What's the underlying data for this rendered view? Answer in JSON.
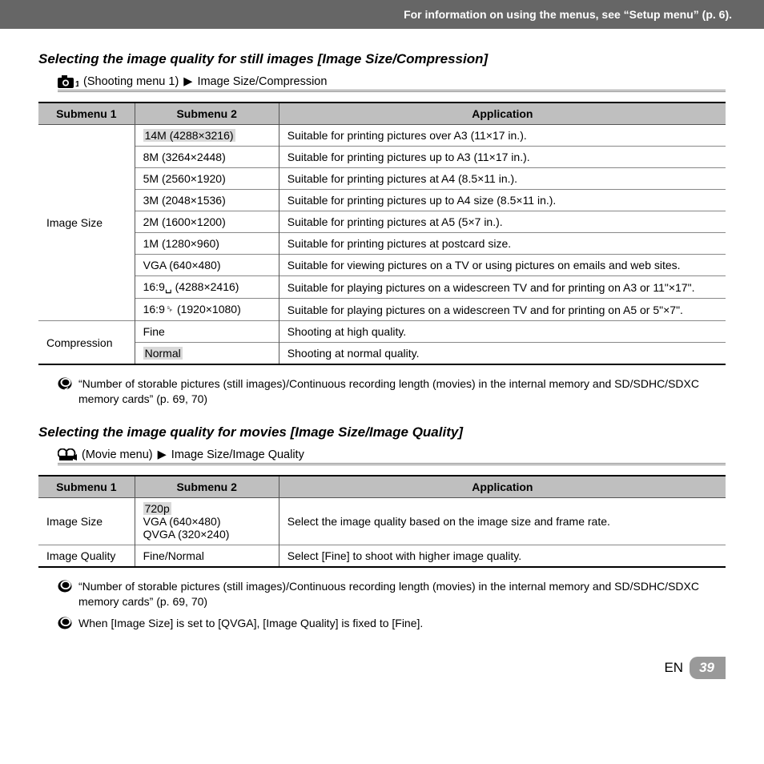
{
  "header": {
    "text": "For information on using the menus, see “Setup menu” (p. 6)."
  },
  "section1": {
    "title": "Selecting the image quality for still images [Image Size/Compression]",
    "breadcrumb_menu": "(Shooting menu 1)",
    "breadcrumb_arrow": "▶",
    "breadcrumb_item": "Image Size/Compression",
    "table": {
      "headers": [
        "Submenu 1",
        "Submenu 2",
        "Application"
      ],
      "group1_label": "Image Size",
      "group1_rows": [
        {
          "sub2": "14M (4288×3216)",
          "hl": true,
          "app": "Suitable for printing pictures over A3 (11×17 in.)."
        },
        {
          "sub2": "8M (3264×2448)",
          "hl": false,
          "app": "Suitable for printing pictures up to A3 (11×17 in.)."
        },
        {
          "sub2": "5M (2560×1920)",
          "hl": false,
          "app": "Suitable for printing pictures at A4 (8.5×11 in.)."
        },
        {
          "sub2": "3M (2048×1536)",
          "hl": false,
          "app": "Suitable for printing pictures up to A4 size (8.5×11 in.)."
        },
        {
          "sub2": "2M (1600×1200)",
          "hl": false,
          "app": "Suitable for printing pictures at A5 (5×7 in.)."
        },
        {
          "sub2": "1M (1280×960)",
          "hl": false,
          "app": "Suitable for printing pictures at postcard size."
        },
        {
          "sub2": "VGA (640×480)",
          "hl": false,
          "app": "Suitable for viewing pictures on a TV or using pictures on emails and web sites."
        },
        {
          "sub2": "16:9␣ (4288×2416)",
          "hl": false,
          "app": "Suitable for playing pictures on a widescreen TV and for printing on A3 or 11\"×17\"."
        },
        {
          "sub2": "16:9␠ (1920×1080)",
          "hl": false,
          "app": "Suitable for playing pictures on a widescreen TV and for printing on A5 or 5\"×7\"."
        }
      ],
      "group2_label": "Compression",
      "group2_rows": [
        {
          "sub2": "Fine",
          "hl": false,
          "app": "Shooting at high quality."
        },
        {
          "sub2": "Normal",
          "hl": true,
          "app": "Shooting at normal quality."
        }
      ]
    },
    "note": "“Number of storable pictures (still images)/Continuous recording length (movies) in the internal memory and SD/SDHC/SDXC memory cards” (p. 69, 70)"
  },
  "section2": {
    "title": "Selecting the image quality for movies [Image Size/Image Quality]",
    "breadcrumb_menu": "(Movie menu)",
    "breadcrumb_arrow": "▶",
    "breadcrumb_item": "Image Size/Image Quality",
    "table": {
      "headers": [
        "Submenu 1",
        "Submenu 2",
        "Application"
      ],
      "rows": [
        {
          "sub1": "Image Size",
          "sub2_lines": [
            "720p",
            "VGA (640×480)",
            "QVGA (320×240)"
          ],
          "hl_first": true,
          "app": "Select the image quality based on the image size and frame rate."
        },
        {
          "sub1": "Image Quality",
          "sub2_lines": [
            "Fine/Normal"
          ],
          "hl_first": false,
          "app": "Select [Fine] to shoot with higher image quality."
        }
      ]
    },
    "note1": "“Number of storable pictures (still images)/Continuous recording length (movies) in the internal memory and SD/SDHC/SDXC memory cards” (p. 69, 70)",
    "note2": "When [Image Size] is set to [QVGA], [Image Quality] is fixed to [Fine]."
  },
  "footer": {
    "lang": "EN",
    "page": "39"
  },
  "colors": {
    "header_bg": "#666666",
    "th_bg": "#bfbfbf",
    "hl_bg": "#d9d9d9",
    "footer_page_bg": "#999999"
  }
}
